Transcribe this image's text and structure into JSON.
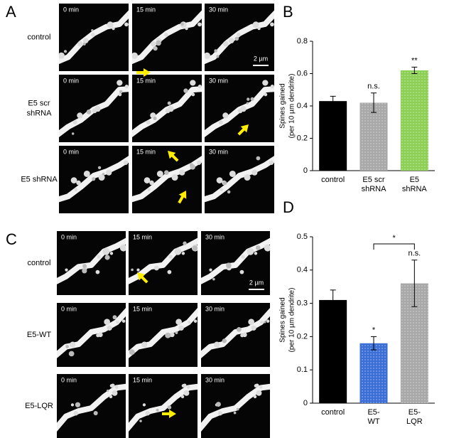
{
  "panels": [
    {
      "letter": "A",
      "time_labels": [
        "0 min",
        "15 min",
        "30 min"
      ],
      "rows": [
        [
          "control"
        ],
        [
          "E5 scr",
          "shRNA"
        ],
        [
          "E5 shRNA"
        ]
      ],
      "scale_bar": "2 µm"
    },
    {
      "letter": "C",
      "time_labels": [
        "0 min",
        "15 min",
        "30 min"
      ],
      "rows": [
        [
          "control"
        ],
        [
          "E5-WT"
        ],
        [
          "E5-LQR"
        ]
      ],
      "scale_bar": "2 µm"
    }
  ],
  "chart_data": [
    {
      "type": "bar",
      "panel_label": "B",
      "ylabel": [
        "Spines gained",
        "(per 10 µm dendrite)"
      ],
      "categories": [
        [
          "control"
        ],
        [
          "E5 scr",
          "shRNA"
        ],
        [
          "E5",
          "shRNA"
        ]
      ],
      "values": [
        0.43,
        0.42,
        0.62
      ],
      "errors": [
        0.03,
        0.06,
        0.02
      ],
      "bar_labels": [
        null,
        "n.s.",
        "**"
      ],
      "colors": [
        "#000000",
        "#a8a8a8",
        "#8ccf55"
      ],
      "dotted": [
        false,
        true,
        true
      ],
      "ylim": [
        0,
        0.8
      ],
      "yticks": [
        0,
        0.2,
        0.4,
        0.6,
        0.8
      ]
    },
    {
      "type": "bar",
      "panel_label": "D",
      "ylabel": [
        "Spines gained",
        "(per 10 µm dendrite)"
      ],
      "categories": [
        [
          "control"
        ],
        [
          "E5-",
          "WT"
        ],
        [
          "E5-",
          "LQR"
        ]
      ],
      "values": [
        0.31,
        0.18,
        0.36
      ],
      "errors": [
        0.03,
        0.02,
        0.07
      ],
      "bar_labels": [
        null,
        "*",
        "n.s."
      ],
      "bracket_label": "*",
      "colors": [
        "#000000",
        "#3c6fd6",
        "#a8a8a8"
      ],
      "dotted": [
        false,
        true,
        true
      ],
      "ylim": [
        0,
        0.5
      ],
      "yticks": [
        0,
        0.1,
        0.2,
        0.3,
        0.4,
        0.5
      ]
    }
  ]
}
